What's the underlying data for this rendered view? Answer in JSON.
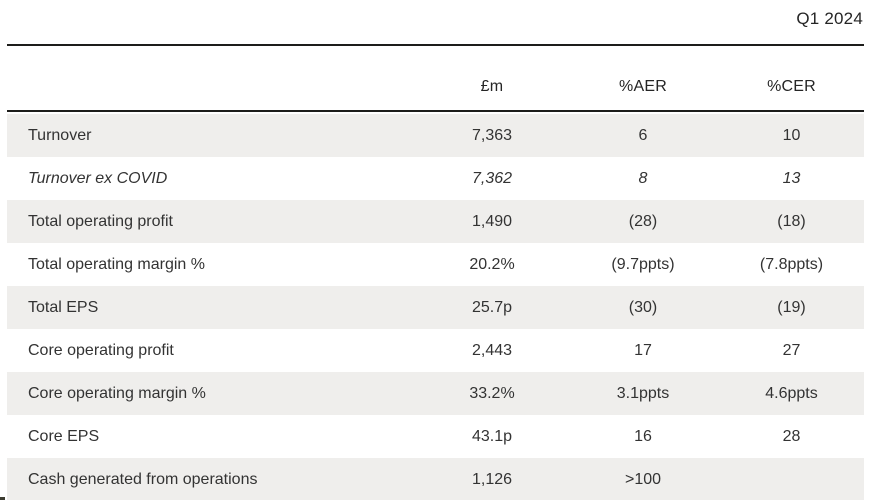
{
  "page": {
    "period_label": "Q1 2024"
  },
  "table": {
    "columns": {
      "label": "",
      "m": "£m",
      "aer": "%AER",
      "cer": "%CER"
    },
    "rows": [
      {
        "label": "Turnover",
        "m": "7,363",
        "aer": "6",
        "cer": "10"
      },
      {
        "label": "Turnover ex COVID",
        "m": "7,362",
        "aer": "8",
        "cer": "13"
      },
      {
        "label": "Total operating profit",
        "m": "1,490",
        "aer": "(28)",
        "cer": "(18)"
      },
      {
        "label": "Total operating margin %",
        "m": "20.2%",
        "aer": "(9.7ppts)",
        "cer": "(7.8ppts)"
      },
      {
        "label": "Total EPS",
        "m": "25.7p",
        "aer": "(30)",
        "cer": "(19)"
      },
      {
        "label": "Core operating profit",
        "m": "2,443",
        "aer": "17",
        "cer": "27"
      },
      {
        "label": "Core operating margin %",
        "m": "33.2%",
        "aer": "3.1ppts",
        "cer": "4.6ppts"
      },
      {
        "label": "Core EPS",
        "m": "43.1p",
        "aer": "16",
        "cer": "28"
      },
      {
        "label": "Cash generated from operations",
        "m": "1,126",
        "aer": ">100",
        "cer": ""
      }
    ],
    "colors": {
      "row_alt_bg": "#efeeec",
      "rule": "#1d1d1b",
      "text": "#333333"
    }
  }
}
